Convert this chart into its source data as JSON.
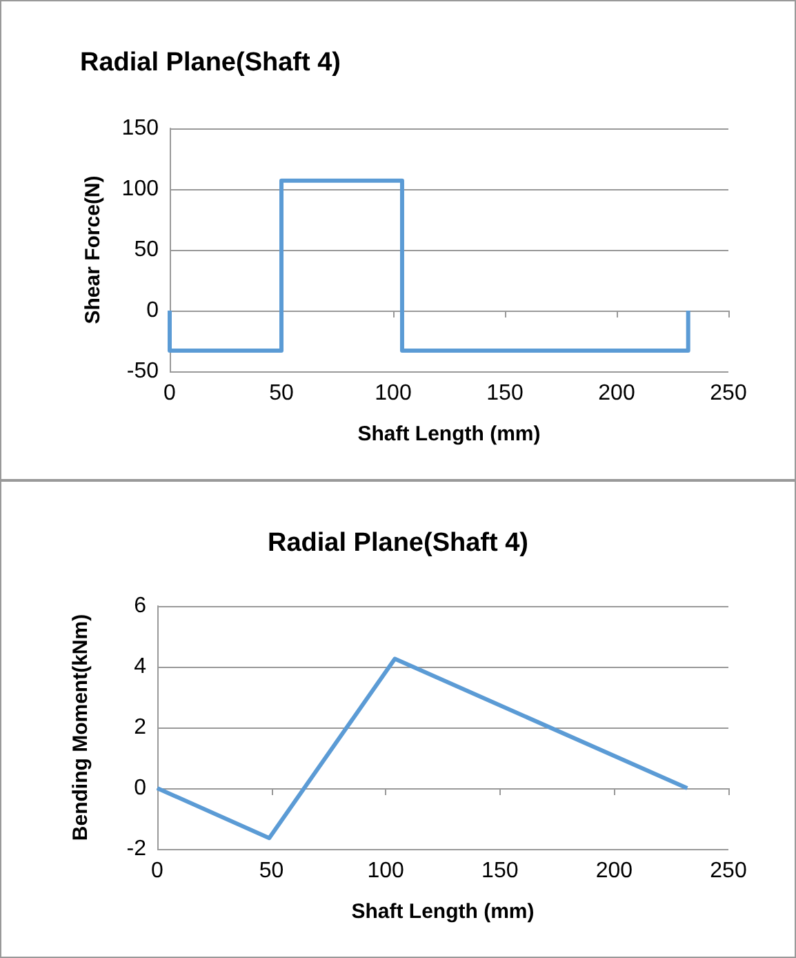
{
  "chart_data": [
    {
      "type": "line",
      "title": "Radial Plane(Shaft 4)",
      "xlabel": "Shaft Length (mm)",
      "ylabel": "Shear Force(N)",
      "x": [
        0,
        0,
        50,
        50,
        104,
        104,
        232,
        232
      ],
      "series": [
        {
          "color": "#5b9bd5",
          "values": [
            0,
            -33,
            -33,
            107,
            107,
            -33,
            -33,
            0
          ]
        }
      ],
      "xlim": [
        0,
        250
      ],
      "xticks": [
        0,
        50,
        100,
        150,
        200,
        250
      ],
      "ylim": [
        -50,
        150
      ],
      "yticks": [
        -50,
        0,
        50,
        100,
        150
      ],
      "grid": "y",
      "marker": "none",
      "line_style": "solid"
    },
    {
      "type": "line",
      "title": "Radial Plane(Shaft 4)",
      "xlabel": "Shaft Length (mm)",
      "ylabel": "Bending Moment(kNm)",
      "x": [
        0,
        49,
        104,
        232
      ],
      "series": [
        {
          "color": "#5b9bd5",
          "values": [
            0,
            -1.64,
            4.26,
            0
          ]
        }
      ],
      "xlim": [
        0,
        250
      ],
      "xticks": [
        0,
        50,
        100,
        150,
        200,
        250
      ],
      "ylim": [
        -2,
        6
      ],
      "yticks": [
        -2,
        0,
        2,
        4,
        6
      ],
      "grid": "y",
      "marker": "none",
      "line_style": "solid"
    }
  ]
}
